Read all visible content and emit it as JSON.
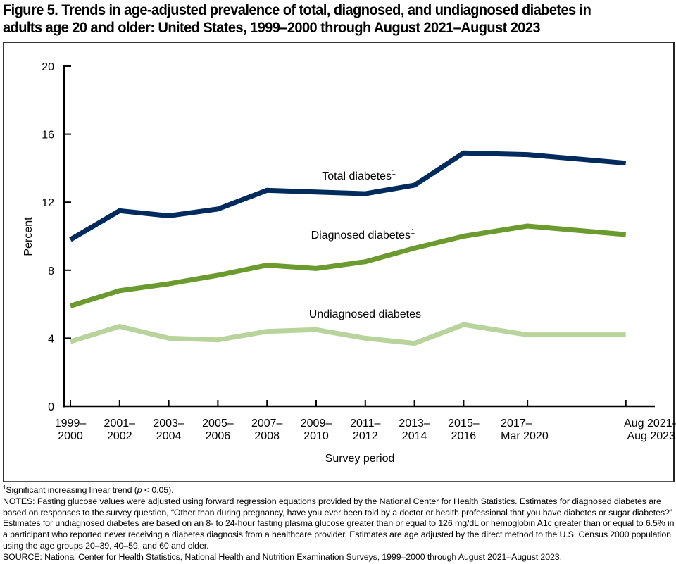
{
  "figure": {
    "title_line1": "Figure 5. Trends in age-adjusted prevalence of total, diagnosed, and undiagnosed diabetes in",
    "title_line2": "adults age 20 and older: United States, 1999–2000 through August 2021–August 2023"
  },
  "chart_data": {
    "type": "line",
    "title": "Trends in age-adjusted prevalence of total, diagnosed, and undiagnosed diabetes in adults age 20 and older: United States, 1999–2000 through August 2021–August 2023",
    "xlabel": "Survey period",
    "ylabel": "Percent",
    "ylim": [
      0,
      20
    ],
    "yticks": [
      0,
      4,
      8,
      12,
      16,
      20
    ],
    "grid": false,
    "legend": "inline labels above each line",
    "categories": [
      {
        "line1": "1999–",
        "line2": "2000",
        "pos": 0
      },
      {
        "line1": "2001–",
        "line2": "2002",
        "pos": 1
      },
      {
        "line1": "2003–",
        "line2": "2004",
        "pos": 2
      },
      {
        "line1": "2005–",
        "line2": "2006",
        "pos": 3
      },
      {
        "line1": "2007–",
        "line2": "2008",
        "pos": 4
      },
      {
        "line1": "2009–",
        "line2": "2010",
        "pos": 5
      },
      {
        "line1": "2011–",
        "line2": "2012",
        "pos": 6
      },
      {
        "line1": "2013–",
        "line2": "2014",
        "pos": 7
      },
      {
        "line1": "2015–",
        "line2": "2016",
        "pos": 8
      },
      {
        "line1": "2017–",
        "line2": "Mar 2020",
        "pos": 9.3
      },
      {
        "line1": "Aug 2021–",
        "line2": "Aug 2023",
        "pos": 11.3
      }
    ],
    "series": [
      {
        "name": "Total diabetes",
        "superscript": "1",
        "color": "#002b5c",
        "values": [
          9.8,
          11.5,
          11.2,
          11.6,
          12.7,
          12.6,
          12.5,
          13.0,
          14.9,
          14.8,
          14.3
        ]
      },
      {
        "name": "Diagnosed diabetes",
        "superscript": "1",
        "color": "#6b9a2e",
        "values": [
          5.9,
          6.8,
          7.2,
          7.7,
          8.3,
          8.1,
          8.5,
          9.3,
          10.0,
          10.6,
          10.1
        ]
      },
      {
        "name": "Undiagnosed diabetes",
        "superscript": "",
        "color": "#b8d39c",
        "values": [
          3.8,
          4.7,
          4.0,
          3.9,
          4.4,
          4.5,
          4.0,
          3.7,
          4.8,
          4.2,
          4.2
        ]
      }
    ]
  },
  "footnotes": {
    "sig_marker": "1",
    "sig_text_before": "Significant increasing linear trend (",
    "sig_p": "p",
    "sig_text_after": " < 0.05).",
    "notes": "NOTES: Fasting glucose values were adjusted using forward regression equations provided by the National Center for Health Statistics. Estimates for diagnosed diabetes are based on responses to the survey question, “Other than during pregnancy, have you ever been told by a doctor or health professional that you have diabetes or sugar diabetes?” Estimates for undiagnosed diabetes are based on an 8- to 24-hour fasting plasma glucose greater than or equal to 126 mg/dL or hemoglobin A1c greater than or equal to 6.5% in a participant who reported never receiving a diabetes diagnosis from a healthcare provider. Estimates are age adjusted by the direct method to the U.S. Census 2000 population using the age groups 20–39, 40–59, and 60 and older.",
    "source": "SOURCE: National Center for Health Statistics, National Health and Nutrition Examination Surveys, 1999–2000 through August 2021–August 2023."
  }
}
